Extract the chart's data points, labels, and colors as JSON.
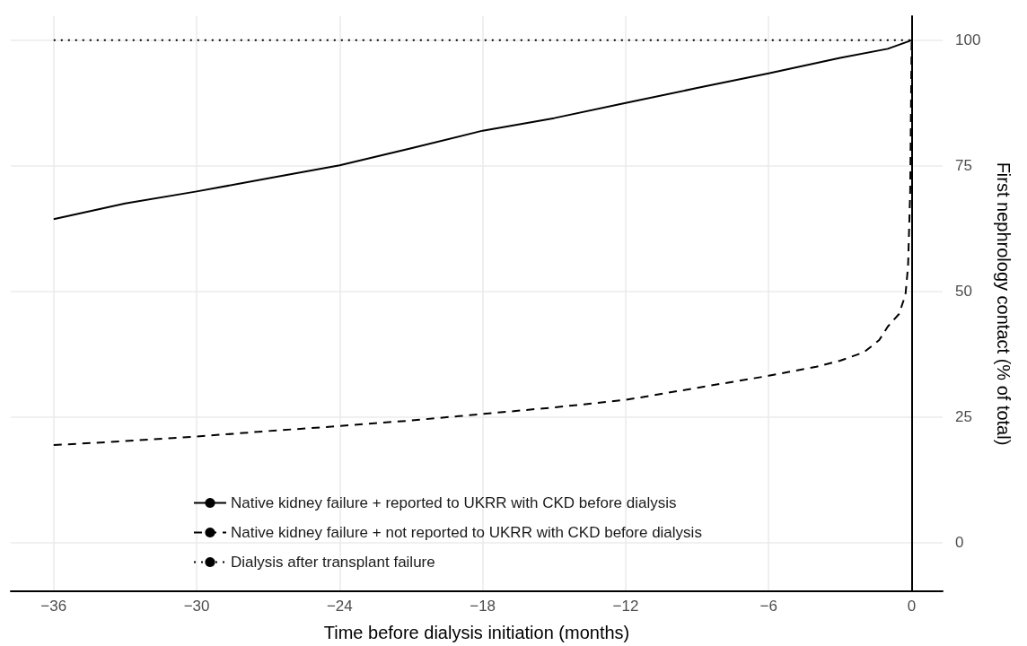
{
  "chart_data": {
    "type": "line",
    "xlabel": "Time before dialysis initiation (months)",
    "ylabel": "First nephrology contact (% of total)",
    "xlim": [
      -37.8,
      1.3
    ],
    "xticks": [
      -36,
      -30,
      -24,
      -18,
      -12,
      -6,
      0
    ],
    "ylim": [
      -9.7,
      104.8
    ],
    "yticks": [
      0,
      25,
      50,
      75,
      100
    ],
    "grid": true,
    "legend": "bottom",
    "marker": "none",
    "series": [
      {
        "name": "Native kidney failure + reported to UKRR with CKD before dialysis",
        "color": "#000000",
        "line_style": "solid",
        "x": [
          -36,
          -33,
          -30,
          -27,
          -24,
          -21,
          -18,
          -15,
          -12,
          -9,
          -6,
          -3,
          -1,
          0
        ],
        "values": [
          64.4,
          67.5,
          69.9,
          72.5,
          75.1,
          78.5,
          82,
          84.5,
          87.5,
          90.5,
          93.4,
          96.5,
          98.3,
          100
        ]
      },
      {
        "name": "Native kidney failure + not reported to UKRR with CKD before dialysis",
        "color": "#000000",
        "line_style": "dashed",
        "x": [
          -36,
          -33,
          -30,
          -27,
          -24,
          -21,
          -18,
          -15,
          -12,
          -9,
          -6,
          -4,
          -3,
          -2,
          -1.36,
          -1,
          -0.53,
          -0.26,
          -0.15,
          -0.06,
          0
        ],
        "values": [
          19.4,
          20.2,
          21.1,
          22.2,
          23.2,
          24.3,
          25.6,
          26.9,
          28.4,
          30.8,
          33.2,
          35,
          36.2,
          37.9,
          40.3,
          43,
          45.5,
          49.3,
          55,
          70,
          100
        ]
      },
      {
        "name": "Dialysis after transplant failure",
        "color": "#000000",
        "line_style": "dotted",
        "x": [
          -36,
          0
        ],
        "values": [
          100,
          100
        ]
      }
    ]
  }
}
